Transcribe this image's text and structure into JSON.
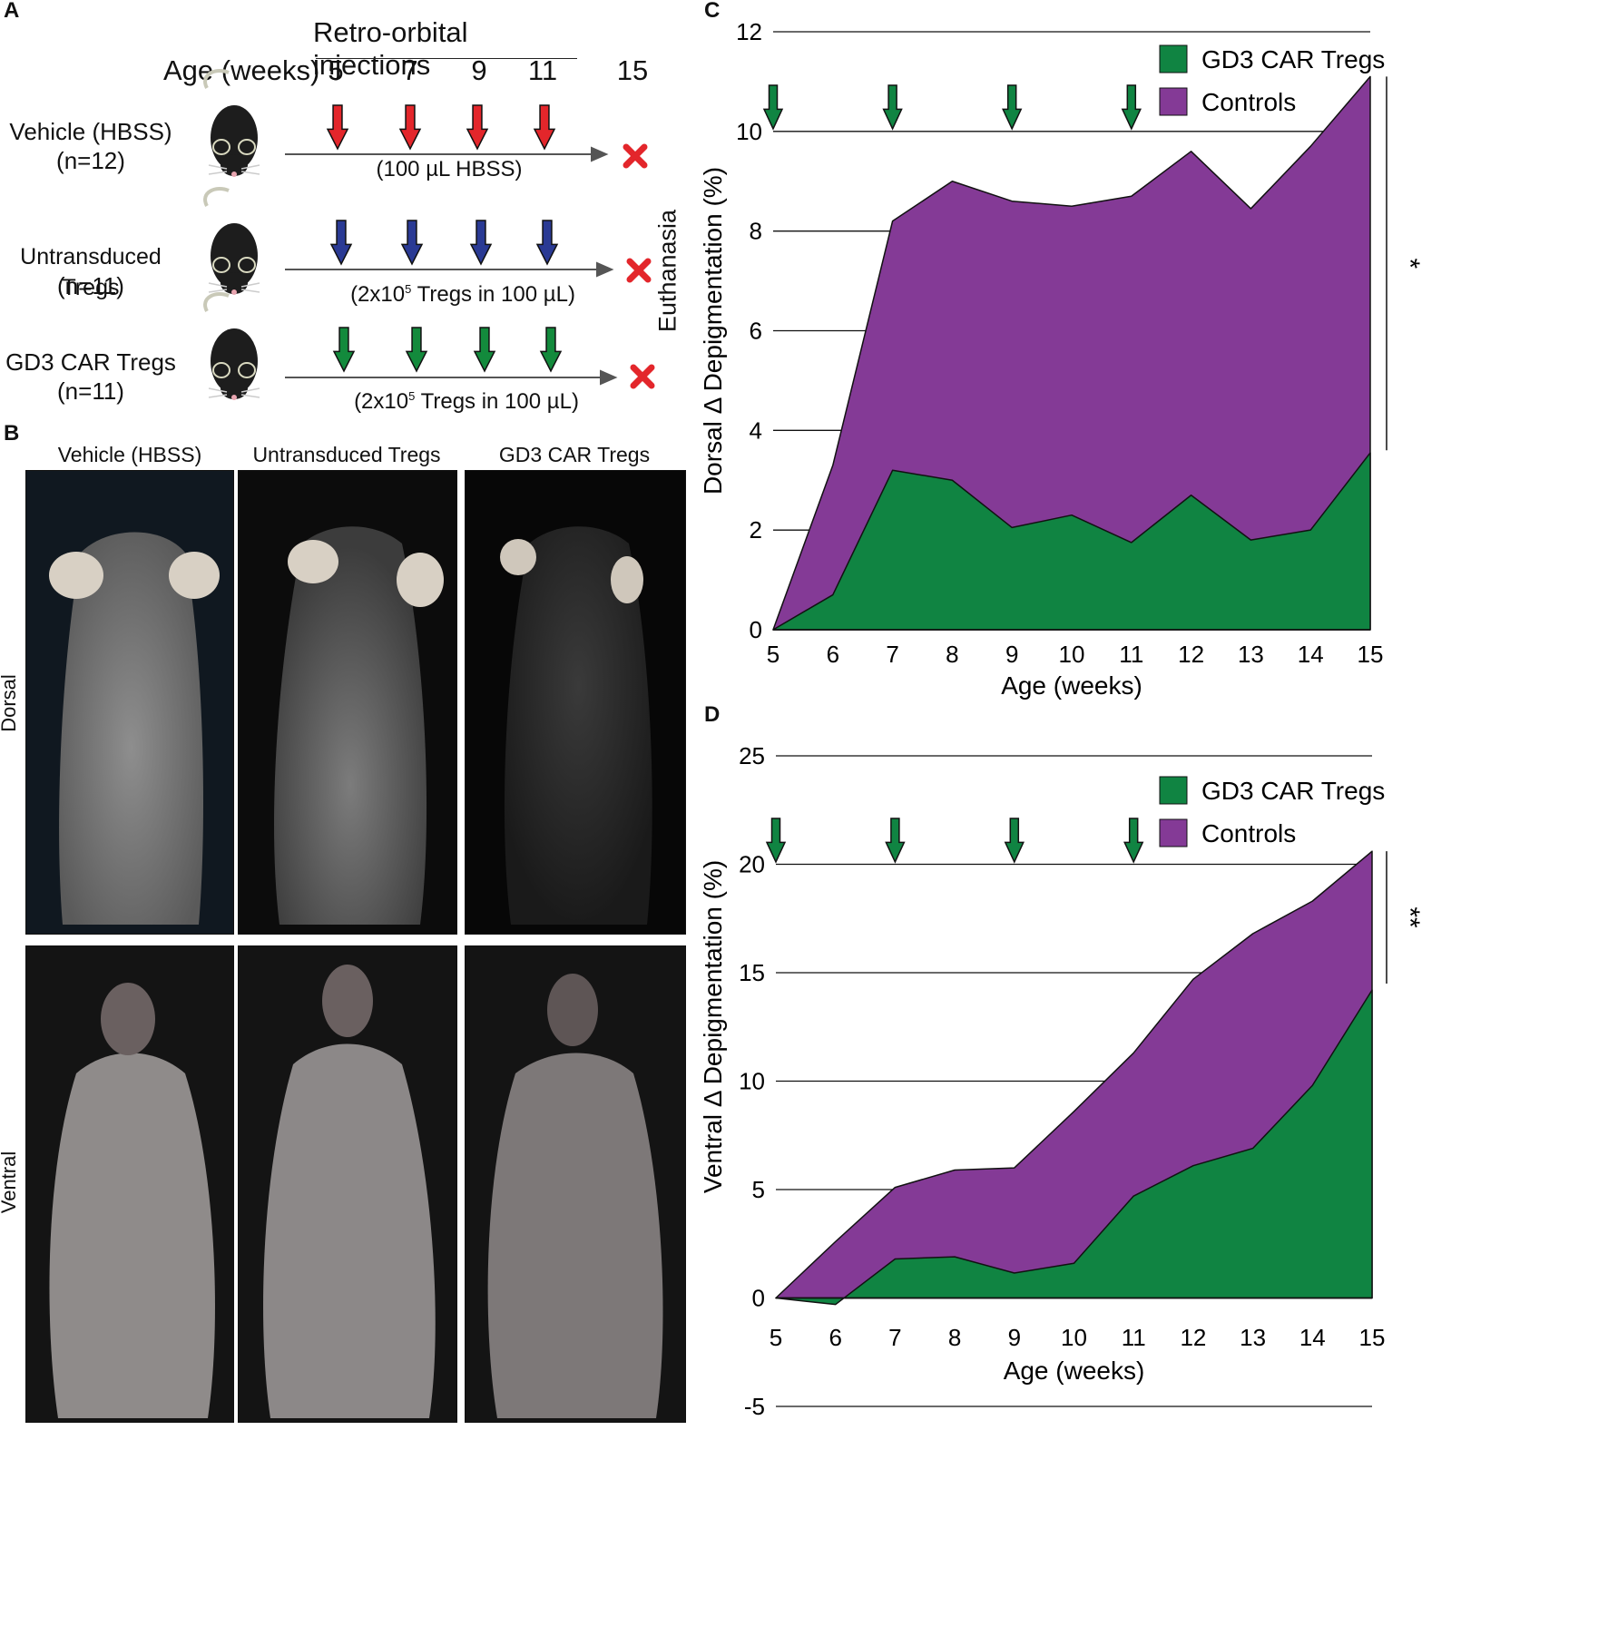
{
  "panelA": {
    "letter": "A",
    "injections_title": "Retro-orbital injections",
    "age_label": "Age (weeks)",
    "weeks": [
      "5",
      "7",
      "9",
      "11",
      "15"
    ],
    "euthanasia": "Euthanasia",
    "groups": [
      {
        "name": "Vehicle (HBSS)",
        "n": "(n=12)",
        "dose": "(100 µL HBSS)",
        "arrow_color": "#e3262b"
      },
      {
        "name": "Untransduced Tregs",
        "n": "(n=11)",
        "dose_pre": "(2x10",
        "dose_sup": "5",
        "dose_post": " Tregs in 100 µL)",
        "arrow_color": "#2a3a94"
      },
      {
        "name": "GD3 CAR Tregs",
        "n": "(n=11)",
        "dose_pre": "(2x10",
        "dose_sup": "5",
        "dose_post": " Tregs in 100 µL)",
        "arrow_color": "#138a3c"
      }
    ],
    "x_mark_color": "#e3262b"
  },
  "panelB": {
    "letter": "B",
    "columns": [
      "Vehicle (HBSS)",
      "Untransduced Tregs",
      "GD3 CAR Tregs"
    ],
    "rows": [
      "Dorsal",
      "Ventral"
    ]
  },
  "chart_data": [
    {
      "letter": "C",
      "type": "area",
      "xlabel": "Age (weeks)",
      "ylabel": "Dorsal Δ Depigmentation (%)",
      "x": [
        5,
        6,
        7,
        8,
        9,
        10,
        11,
        12,
        13,
        14,
        15
      ],
      "xlim": [
        5,
        15
      ],
      "ylim": [
        0,
        12
      ],
      "yticks": [
        0,
        2,
        4,
        6,
        8,
        10,
        12
      ],
      "series": [
        {
          "name": "Controls",
          "color": "#843a96",
          "values": [
            0,
            3.3,
            8.2,
            9.0,
            8.6,
            8.5,
            8.7,
            9.6,
            8.45,
            9.7,
            11.1
          ]
        },
        {
          "name": "GD3 CAR Tregs",
          "color": "#108442",
          "values": [
            0,
            0.7,
            3.2,
            3.0,
            2.05,
            2.3,
            1.75,
            2.7,
            1.8,
            2.0,
            3.55
          ]
        }
      ],
      "injection_arrows_at": [
        5,
        7,
        9,
        11
      ],
      "significance": "*",
      "sig_range": [
        3.6,
        11.1
      ]
    },
    {
      "letter": "D",
      "type": "area",
      "xlabel": "Age (weeks)",
      "ylabel": "Ventral Δ Depigmentation (%)",
      "x": [
        5,
        6,
        7,
        8,
        9,
        10,
        11,
        12,
        13,
        14,
        15
      ],
      "xlim": [
        5,
        15
      ],
      "ylim": [
        -5,
        25
      ],
      "yticks": [
        -5,
        0,
        5,
        10,
        15,
        20,
        25
      ],
      "series": [
        {
          "name": "Controls",
          "color": "#843a96",
          "values": [
            0,
            2.6,
            5.1,
            5.9,
            6.0,
            8.6,
            11.3,
            14.7,
            16.8,
            18.3,
            20.6
          ]
        },
        {
          "name": "GD3 CAR Tregs",
          "color": "#108442",
          "values": [
            0,
            -0.3,
            1.8,
            1.9,
            1.15,
            1.6,
            4.7,
            6.1,
            6.9,
            9.8,
            14.2
          ]
        }
      ],
      "injection_arrows_at": [
        5,
        7,
        9,
        11
      ],
      "significance": "**",
      "sig_range": [
        14.5,
        20.6
      ]
    }
  ]
}
